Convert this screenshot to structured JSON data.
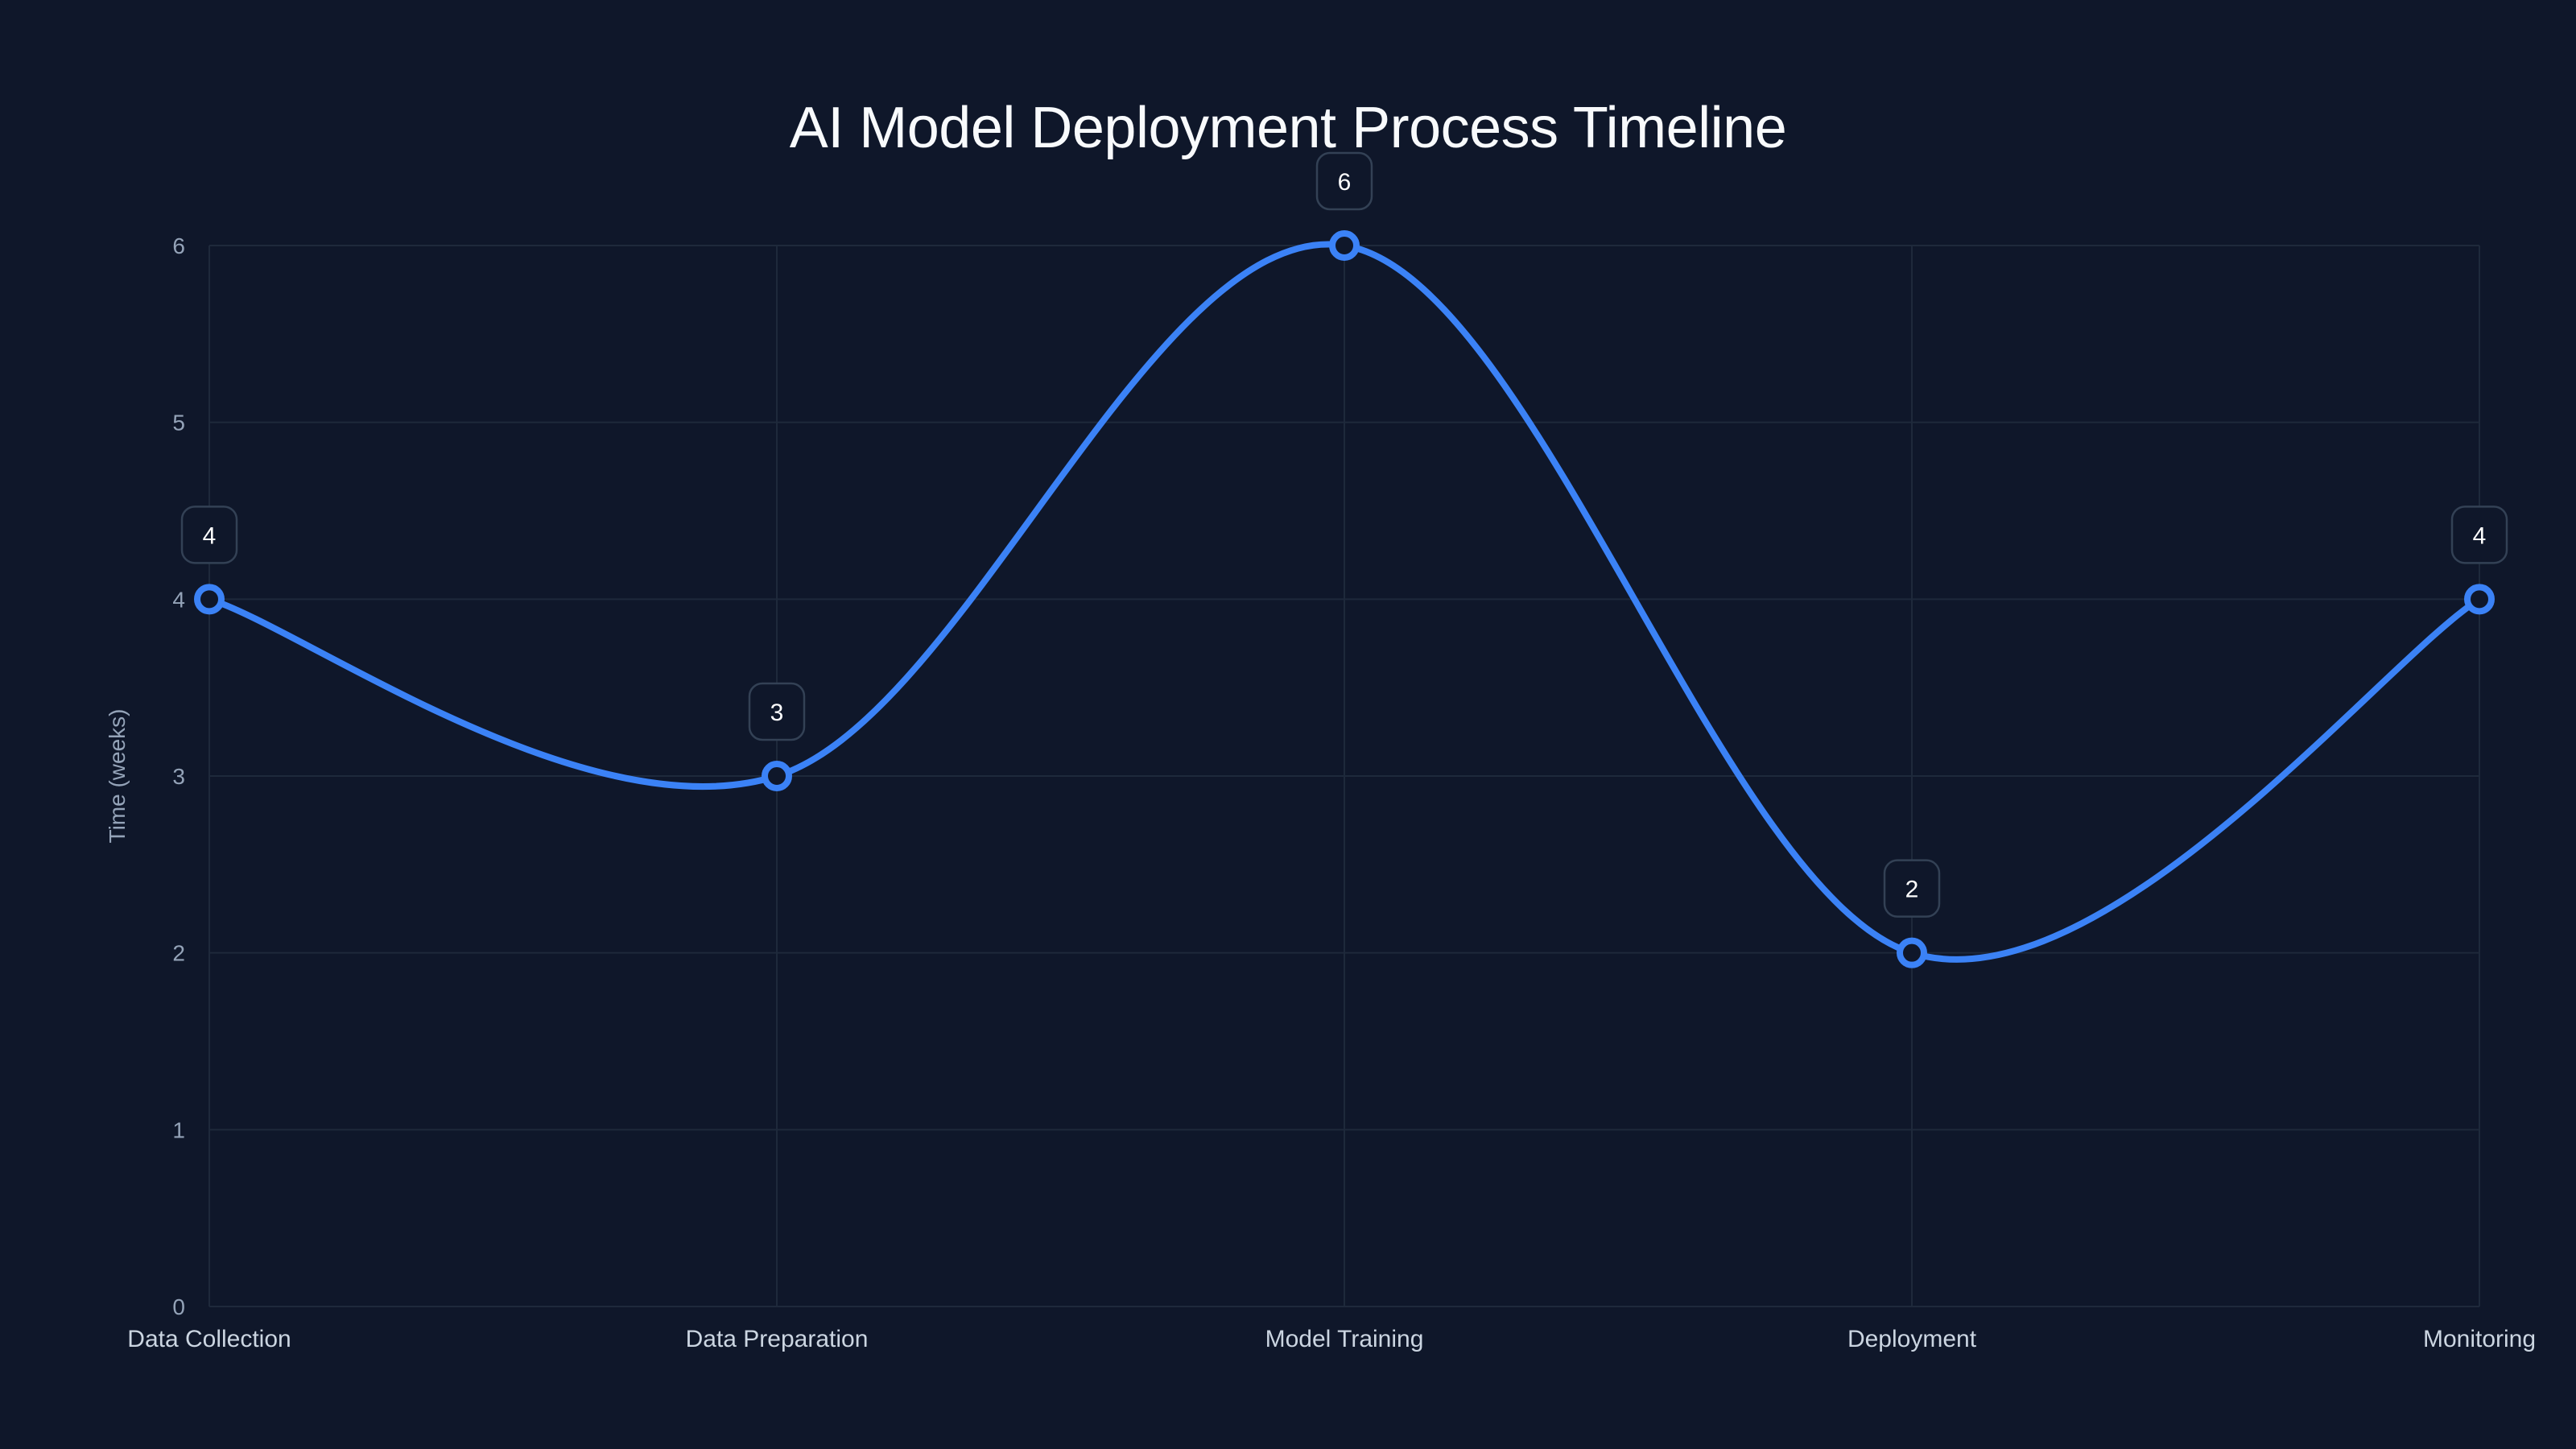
{
  "chart_data": {
    "type": "line",
    "title": "AI Model Deployment Process Timeline",
    "xlabel": "",
    "ylabel": "Time (weeks)",
    "categories": [
      "Data Collection",
      "Data Preparation",
      "Model Training",
      "Deployment",
      "Monitoring"
    ],
    "series": [
      {
        "name": "Time (weeks)",
        "values": [
          4,
          3,
          6,
          2,
          4
        ],
        "color": "#3b82f6"
      }
    ],
    "ylim": [
      0,
      6
    ],
    "yticks": [
      0,
      1,
      2,
      3,
      4,
      5,
      6
    ],
    "grid": true,
    "curve": "smooth",
    "data_labels": true,
    "legend": "none"
  },
  "colors": {
    "background": "#0f172a",
    "line": "#3b82f6",
    "grid": "#1e293b",
    "label_box_border": "#334155",
    "label_box_fill": "#0f172a"
  }
}
